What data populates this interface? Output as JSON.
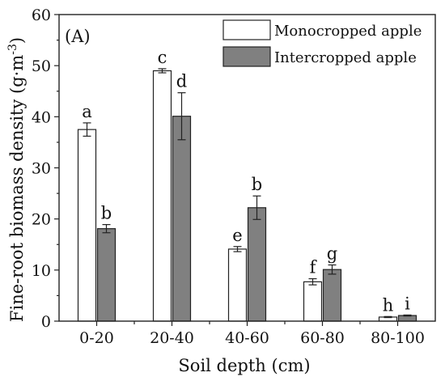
{
  "chart_data": {
    "type": "bar",
    "panel_label": "(A)",
    "xlabel": "Soil depth (cm)",
    "ylabel_main": "Fine-root biomass density (g·m",
    "ylabel_sup": "-3",
    "ylabel_close": ")",
    "ylim": [
      0,
      60
    ],
    "yticks": [
      0,
      10,
      20,
      30,
      40,
      50,
      60
    ],
    "categories": [
      "0-20",
      "20-40",
      "40-60",
      "60-80",
      "80-100"
    ],
    "legend_position": "top-right",
    "series": [
      {
        "name": "Monocropped apple",
        "color": "#ffffff",
        "values": [
          37.5,
          49.0,
          14.1,
          7.7,
          0.8
        ],
        "errors": [
          1.3,
          0.4,
          0.5,
          0.6,
          0.1
        ],
        "labels": [
          "a",
          "c",
          "e",
          "f",
          "h"
        ]
      },
      {
        "name": "Intercropped apple",
        "color": "#808080",
        "values": [
          18.1,
          40.1,
          22.2,
          10.1,
          1.1
        ],
        "errors": [
          0.8,
          4.6,
          2.3,
          0.9,
          0.1
        ],
        "labels": [
          "b",
          "d",
          "b",
          "g",
          "i"
        ]
      }
    ]
  }
}
